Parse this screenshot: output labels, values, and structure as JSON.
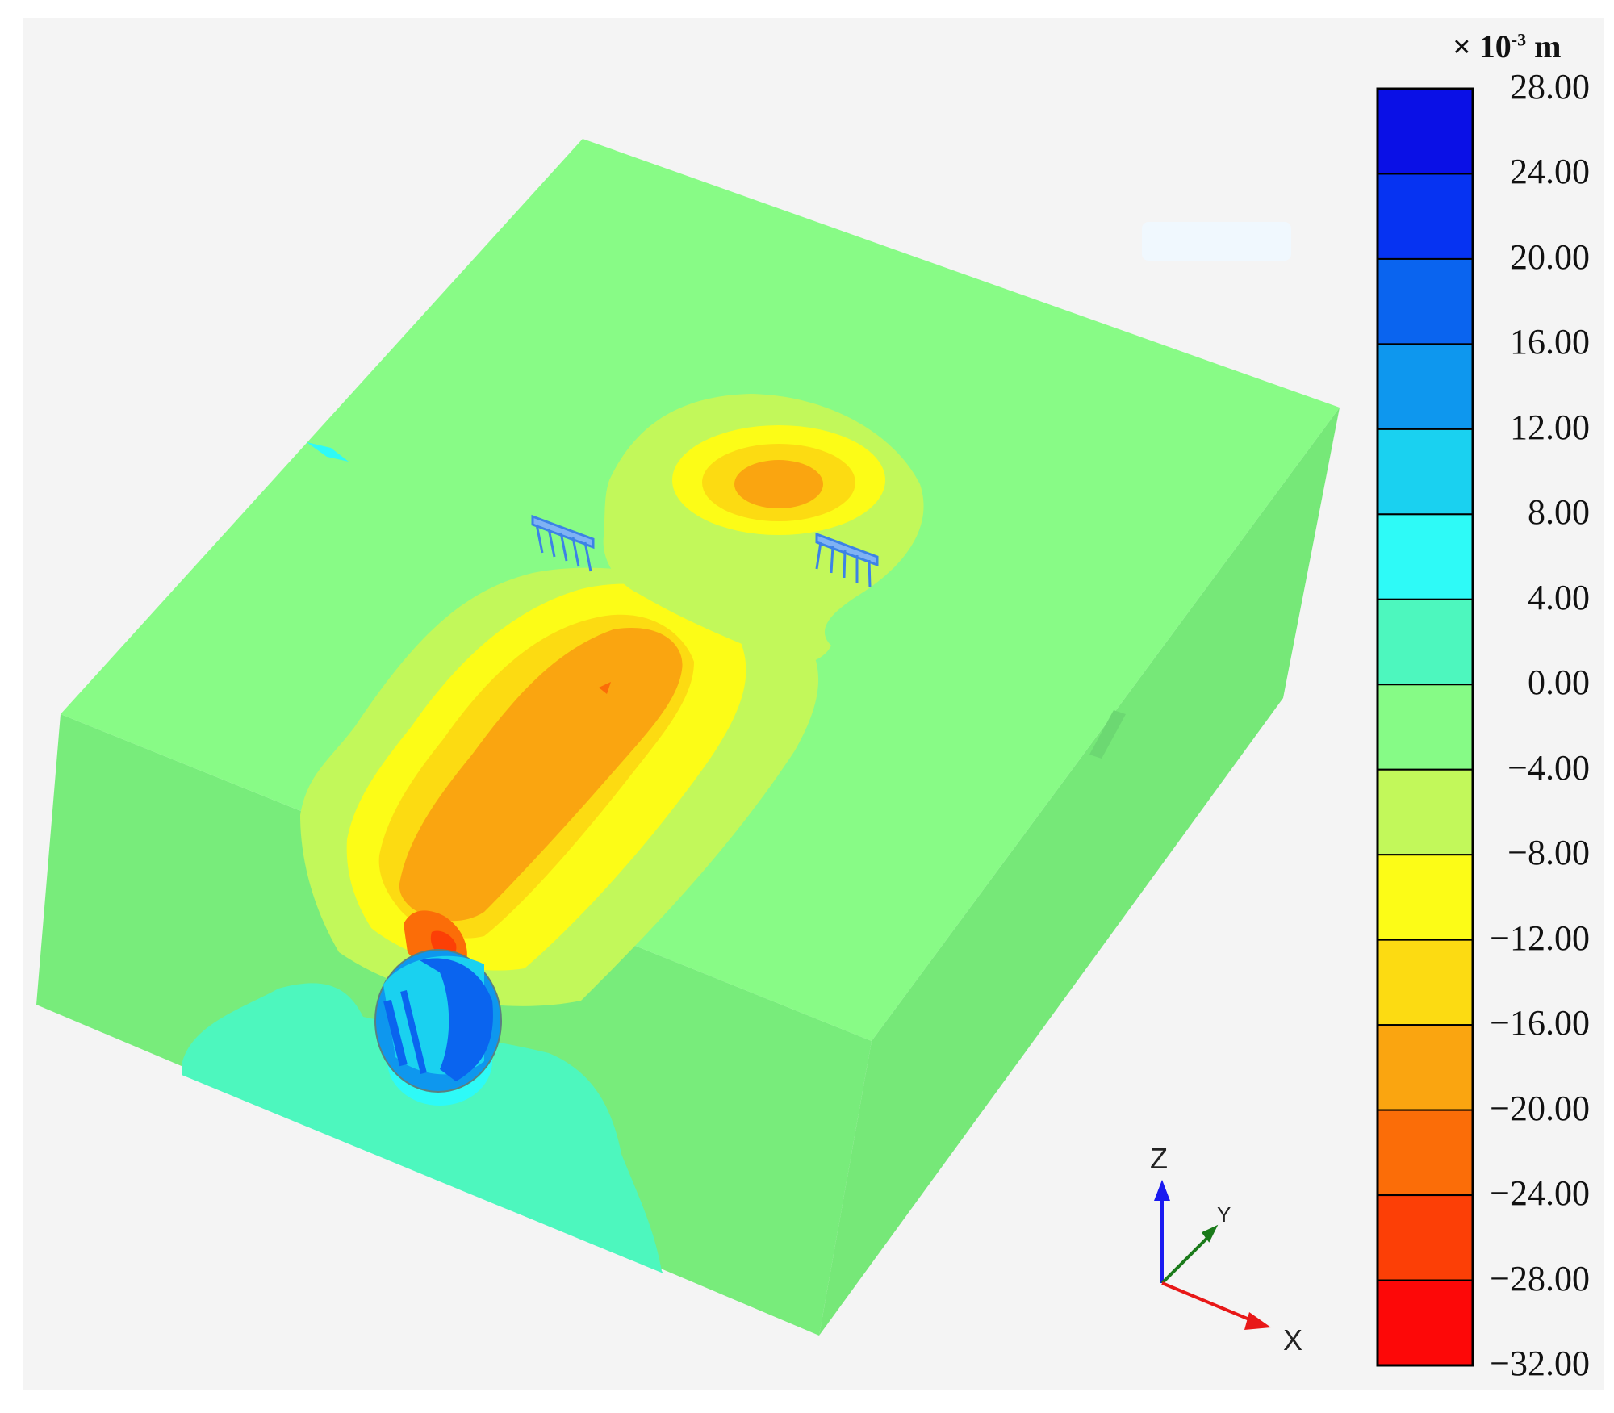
{
  "legend": {
    "unit_prefix": "× 10",
    "unit_exponent": "-3",
    "unit_suffix": " m",
    "ticks": [
      "28.00",
      "24.00",
      "20.00",
      "16.00",
      "12.00",
      "8.00",
      "4.00",
      "0.00",
      "−4.00",
      "−8.00",
      "−12.00",
      "−16.00",
      "−20.00",
      "−24.00",
      "−28.00",
      "−32.00"
    ],
    "colors": [
      "#0a10e6",
      "#0633f2",
      "#0a64ef",
      "#0e97ee",
      "#1ad1f0",
      "#2efaf7",
      "#4df7be",
      "#86fb86",
      "#c2f85a",
      "#fcfc17",
      "#fcdb12",
      "#faa510",
      "#fb6d08",
      "#fc3f06",
      "#fd0808"
    ]
  },
  "axes": {
    "z": "Z",
    "y": "Y",
    "x": "X"
  },
  "colors": {
    "top_face": "#88fb86",
    "front_face": "#78ec7b",
    "right_face": "#76e878",
    "background": "#f4f4f4"
  }
}
